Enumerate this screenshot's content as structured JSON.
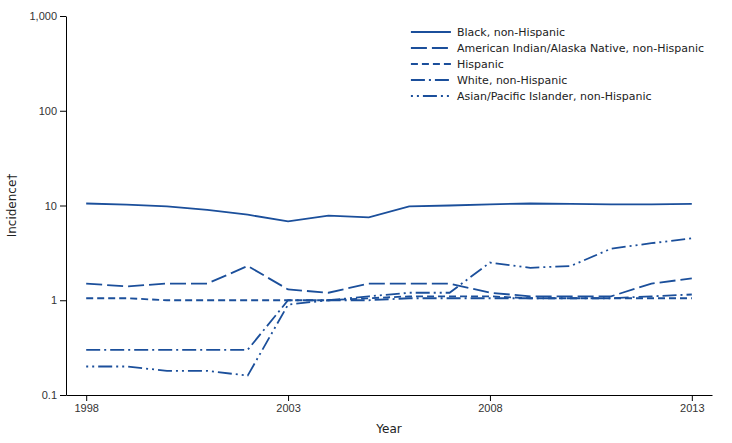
{
  "chart_data": {
    "type": "line",
    "xlabel": "Year",
    "ylabel": "Incidence†",
    "log": "y",
    "color": "#1b4f9b",
    "legend": "upper right",
    "grid": false,
    "x": [
      1998,
      1999,
      2000,
      2001,
      2002,
      2003,
      2004,
      2005,
      2006,
      2007,
      2008,
      2009,
      2010,
      2011,
      2012,
      2013
    ],
    "series": [
      {
        "name": "Black, non-Hispanic",
        "line_style": "solid",
        "values": [
          10.5,
          10.2,
          9.8,
          9.0,
          8.0,
          6.8,
          7.8,
          7.5,
          9.8,
          10.0,
          10.3,
          10.5,
          10.4,
          10.3,
          10.3,
          10.4
        ]
      },
      {
        "name": "American Indian/Alaska Native, non-Hispanic",
        "line_style": "long-dash",
        "values": [
          1.5,
          1.4,
          1.5,
          1.5,
          2.3,
          1.3,
          1.2,
          1.5,
          1.5,
          1.5,
          1.2,
          1.1,
          1.1,
          1.1,
          1.5,
          1.7
        ]
      },
      {
        "name": "Hispanic",
        "line_style": "dashed",
        "values": [
          1.05,
          1.05,
          1.0,
          1.0,
          1.0,
          1.0,
          1.0,
          1.05,
          1.1,
          1.1,
          1.1,
          1.05,
          1.05,
          1.05,
          1.05,
          1.05
        ]
      },
      {
        "name": "White, non-Hispanic",
        "line_style": "dash-dot",
        "values": [
          0.3,
          0.3,
          0.3,
          0.3,
          0.3,
          1.0,
          1.0,
          1.0,
          1.05,
          1.05,
          1.05,
          1.05,
          1.05,
          1.05,
          1.1,
          1.15
        ]
      },
      {
        "name": "Asian/Pacific Islander, non-Hispanic",
        "line_style": "dot-dot-dash",
        "values": [
          0.2,
          0.2,
          0.18,
          0.18,
          0.16,
          0.9,
          1.0,
          1.1,
          1.2,
          1.2,
          2.5,
          2.2,
          2.3,
          3.5,
          4.0,
          4.5
        ]
      }
    ],
    "xlim": [
      1997.5,
      2013.5
    ],
    "xticks": [
      1998,
      2003,
      2008,
      2013
    ],
    "ylim": [
      0.1,
      1000
    ],
    "yticks": [
      0.1,
      1,
      10,
      100,
      {
        "value": 1000,
        "label": "1,000"
      }
    ]
  }
}
